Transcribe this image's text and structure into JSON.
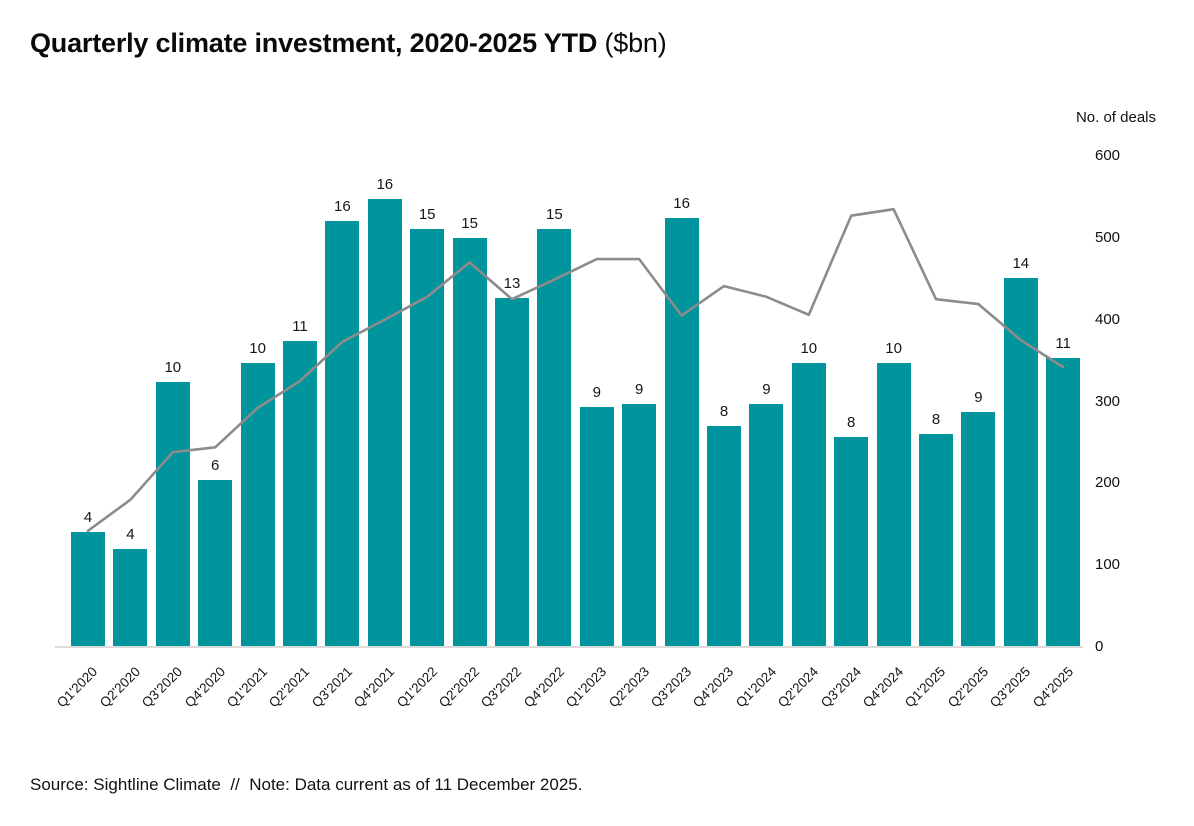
{
  "title": {
    "main": "Quarterly climate investment, 2020-2025 YTD",
    "unit": " ($bn)"
  },
  "right_axis": {
    "title": "No. of deals",
    "ticks": [
      "600",
      "500",
      "400",
      "300",
      "200",
      "100",
      "0"
    ]
  },
  "footer": {
    "source_note": "Source: Sightline Climate  //  Note: Data current as of 11 December 2025."
  },
  "colors": {
    "bar": "#00949c",
    "line": "#8c8c8c",
    "axis_line": "#dcdcdc",
    "text": "#111111"
  },
  "chart_data": {
    "type": "bar",
    "combo": "bar+line",
    "title": "Quarterly climate investment, 2020-2025 YTD ($bn)",
    "categories": [
      "Q1'2020",
      "Q2'2020",
      "Q3'2020",
      "Q4'2020",
      "Q1'2021",
      "Q2'2021",
      "Q3'2021",
      "Q4'2021",
      "Q1'2022",
      "Q2'2022",
      "Q3'2022",
      "Q4'2022",
      "Q1'2023",
      "Q2'2023",
      "Q3'2023",
      "Q4'2023",
      "Q1'2024",
      "Q2'2024",
      "Q3'2024",
      "Q4'2024",
      "Q1'2025",
      "Q2'2025",
      "Q3'2025",
      "Q4'2025"
    ],
    "series": [
      {
        "name": "Quarterly climate investment ($bn)",
        "type": "bar",
        "values": [
          4.2,
          3.6,
          9.7,
          6.1,
          10.4,
          11.2,
          15.6,
          16.4,
          15.3,
          15.0,
          12.8,
          15.3,
          8.8,
          8.9,
          15.7,
          8.1,
          8.9,
          10.4,
          7.7,
          10.4,
          7.8,
          8.6,
          13.5,
          10.6
        ],
        "data_labels": [
          "4",
          "4",
          "10",
          "6",
          "10",
          "11",
          "16",
          "16",
          "15",
          "15",
          "13",
          "15",
          "9",
          "9",
          "16",
          "8",
          "9",
          "10",
          "8",
          "10",
          "8",
          "9",
          "14",
          "11"
        ]
      },
      {
        "name": "No. of deals",
        "type": "line",
        "values": [
          142,
          180,
          238,
          244,
          292,
          325,
          373,
          400,
          428,
          470,
          425,
          449,
          474,
          474,
          405,
          441,
          428,
          406,
          527,
          535,
          425,
          419,
          375,
          342
        ]
      }
    ],
    "bar_axis": {
      "label": "$bn",
      "min": 0,
      "max_implied": 18,
      "labels_shown": "rounded values above bars"
    },
    "line_axis": {
      "label": "No. of deals",
      "min": 0,
      "max": 600,
      "tick_step": 100,
      "position": "right"
    },
    "grid": false,
    "legend": "none",
    "x_tick_rotation": -45
  }
}
